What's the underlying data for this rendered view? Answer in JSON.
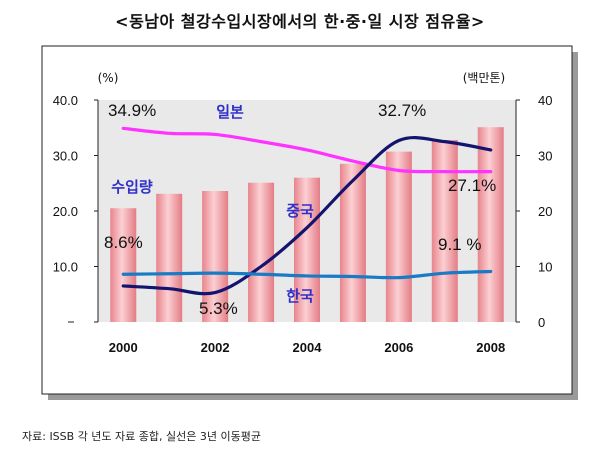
{
  "title": "<동남아 철강수입시장에서의 한·중·일 시장 점유율>",
  "source": "자료: ISSB 각 년도 자료 종합, 실선은 3년 이동평균",
  "chart_data": {
    "type": "bar+line",
    "x_ticks": [
      "2000",
      "2002",
      "2004",
      "2006",
      "2008"
    ],
    "y_left": {
      "unit": "(%)",
      "min": 0,
      "max": 40,
      "ticks": [
        "",
        "10.0",
        "20.0",
        "30.0",
        "40.0"
      ]
    },
    "y_right": {
      "unit": "(백만톤)",
      "min": 0,
      "max": 40,
      "ticks": [
        "0",
        "10",
        "20",
        "30",
        "40"
      ]
    },
    "bars": {
      "name": "수입량",
      "axis": "right",
      "x": [
        2000,
        2001,
        2002,
        2003,
        2004,
        2005,
        2006,
        2007,
        2008
      ],
      "values": [
        20.5,
        23.1,
        23.6,
        25.1,
        26.0,
        28.5,
        30.7,
        32.8,
        35.1
      ],
      "color": "#f2a5aa"
    },
    "series": [
      {
        "name": "일본",
        "axis": "left",
        "color": "#ff33ff",
        "x": [
          2000,
          2001,
          2002,
          2003,
          2004,
          2005,
          2006,
          2007,
          2008
        ],
        "values": [
          34.9,
          34.0,
          33.8,
          32.5,
          31.0,
          29.0,
          27.3,
          27.1,
          27.1
        ]
      },
      {
        "name": "중국",
        "axis": "left",
        "color": "#14146e",
        "x": [
          2000,
          2001,
          2002,
          2003,
          2004,
          2005,
          2006,
          2007,
          2008
        ],
        "values": [
          6.5,
          6.0,
          5.3,
          10.0,
          17.0,
          25.5,
          32.7,
          32.5,
          31.0
        ]
      },
      {
        "name": "한국",
        "axis": "left",
        "color": "#1a7ac4",
        "x": [
          2000,
          2001,
          2002,
          2003,
          2004,
          2005,
          2006,
          2007,
          2008
        ],
        "values": [
          8.6,
          8.7,
          8.8,
          8.6,
          8.3,
          8.2,
          8.0,
          8.8,
          9.1
        ]
      }
    ],
    "annotations": [
      {
        "text": "34.9%"
      },
      {
        "text": "27.1%"
      },
      {
        "text": "32.7%"
      },
      {
        "text": "8.6%"
      },
      {
        "text": "5.3%"
      },
      {
        "text": "9.1 %"
      }
    ]
  }
}
